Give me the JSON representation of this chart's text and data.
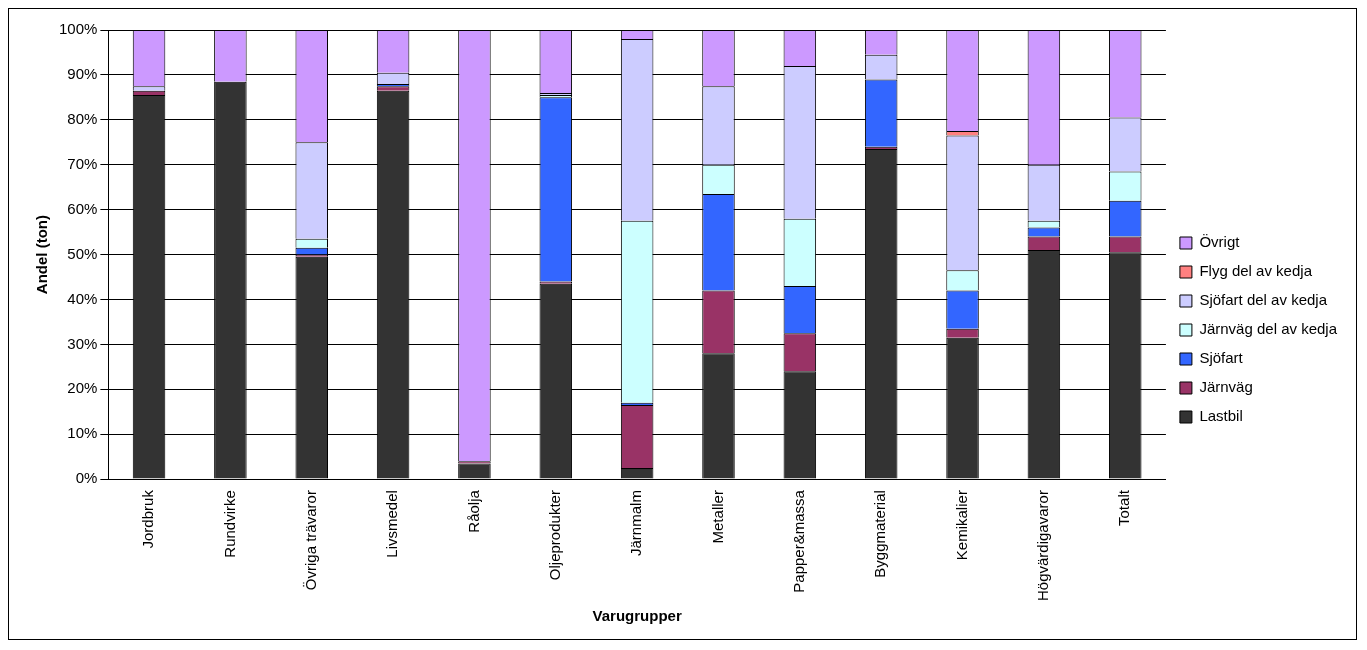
{
  "chart_data": {
    "type": "bar",
    "stacked": true,
    "xlabel": "Varugrupper",
    "ylabel": "Andel (ton)",
    "categories": [
      "Jordbruk",
      "Rundvirke",
      "Övriga trävaror",
      "Livsmedel",
      "Råolja",
      "Oljeprodukter",
      "Järnmalm",
      "Metaller",
      "Papper&massa",
      "Byggmaterial",
      "Kemikalier",
      "Högvärdigavaror",
      "Totalt"
    ],
    "series": [
      {
        "name": "Lastbil",
        "color": "#333333",
        "values": [
          85.5,
          88.5,
          49.5,
          86.5,
          3.5,
          43.5,
          2.5,
          28,
          24,
          73.5,
          31.5,
          51,
          50.5
        ]
      },
      {
        "name": "Järnväg",
        "color": "#993366",
        "values": [
          1,
          0,
          0.5,
          1,
          0.5,
          0.5,
          14,
          14,
          8.5,
          0.5,
          2,
          3,
          3.5
        ]
      },
      {
        "name": "Sjöfart",
        "color": "#3366ff",
        "values": [
          0,
          0,
          1.5,
          0.5,
          0,
          41,
          0.5,
          21.5,
          10.5,
          15,
          8.5,
          2,
          8
        ]
      },
      {
        "name": "Järnväg del av kedja",
        "color": "#ccffff",
        "values": [
          0,
          0,
          2,
          0,
          0,
          0.5,
          40.5,
          6.5,
          15,
          0,
          4.5,
          1.5,
          6.5
        ]
      },
      {
        "name": "Sjöfart del av kedja",
        "color": "#ccccff",
        "values": [
          1,
          0,
          21.5,
          2.5,
          0,
          0.5,
          40.5,
          17.5,
          34,
          5.5,
          30,
          12.5,
          12
        ]
      },
      {
        "name": "Flyg del av kedja",
        "color": "#ff8080",
        "values": [
          0,
          0,
          0,
          0,
          0,
          0,
          0,
          0,
          0,
          0,
          1,
          null,
          0
        ]
      },
      {
        "name": "Övrigt",
        "color": "#cc99ff",
        "values": [
          12.5,
          11.5,
          25,
          9.5,
          96,
          14,
          2,
          12.5,
          8,
          5.5,
          22.5,
          30,
          19.5
        ]
      }
    ],
    "ylim": [
      0,
      100
    ],
    "yticks": [
      {
        "value": 0,
        "label": "0%"
      },
      {
        "value": 10,
        "label": "10%"
      },
      {
        "value": 20,
        "label": "20%"
      },
      {
        "value": 30,
        "label": "30%"
      },
      {
        "value": 40,
        "label": "40%"
      },
      {
        "value": 50,
        "label": "50%"
      },
      {
        "value": 60,
        "label": "60%"
      },
      {
        "value": 70,
        "label": "70%"
      },
      {
        "value": 80,
        "label": "80%"
      },
      {
        "value": 90,
        "label": "90%"
      },
      {
        "value": 100,
        "label": "100%"
      }
    ],
    "grid": "y",
    "legend": "right"
  }
}
